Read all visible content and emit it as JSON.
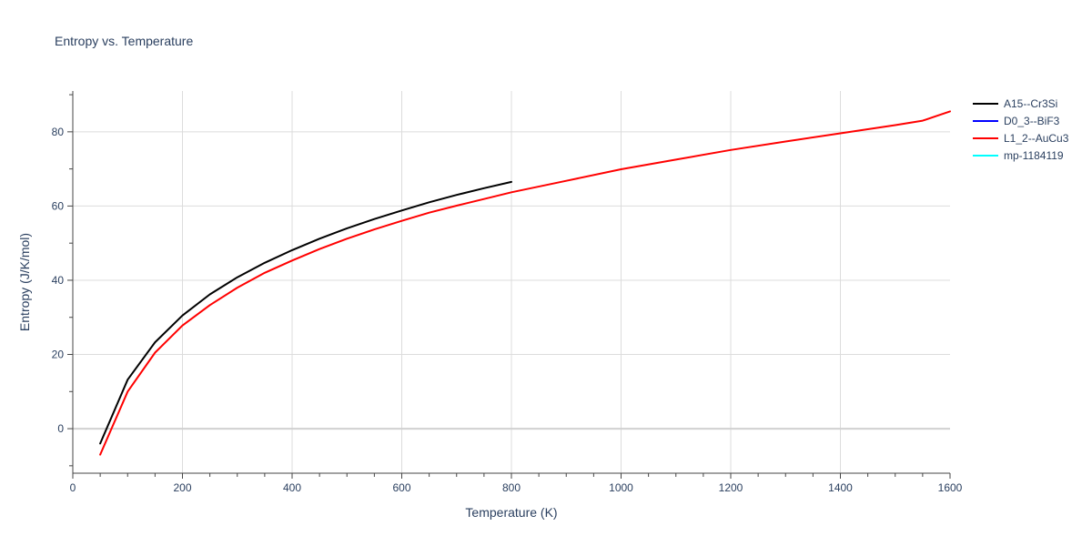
{
  "chart_data": {
    "type": "line",
    "title": "Entropy vs. Temperature",
    "xlabel": "Temperature (K)",
    "ylabel": "Entropy (J/K/mol)",
    "xlim": [
      0,
      1600
    ],
    "ylim": [
      -12,
      91
    ],
    "xticks": [
      0,
      200,
      400,
      600,
      800,
      1000,
      1200,
      1400,
      1600
    ],
    "yticks": [
      0,
      20,
      40,
      60,
      80
    ],
    "grid": true,
    "legend_position": "top-right",
    "series": [
      {
        "name": "A15--Cr3Si",
        "color": "#000000",
        "x": [
          50,
          100,
          150,
          200,
          250,
          300,
          350,
          400,
          450,
          500,
          550,
          600,
          650,
          700,
          750,
          800
        ],
        "y": [
          -4,
          13.2,
          23.3,
          30.5,
          36.2,
          40.8,
          44.7,
          48.1,
          51.2,
          54.0,
          56.5,
          58.8,
          61.0,
          63.0,
          64.8,
          66.5
        ]
      },
      {
        "name": "D0_3--BiF3",
        "color": "#0000ff",
        "x": [],
        "y": []
      },
      {
        "name": "L1_2--AuCu3",
        "color": "#ff0000",
        "x": [
          50,
          100,
          150,
          200,
          250,
          300,
          350,
          400,
          450,
          500,
          550,
          600,
          650,
          700,
          750,
          800,
          900,
          1000,
          1100,
          1200,
          1300,
          1400,
          1500,
          1550,
          1600
        ],
        "y": [
          -7,
          10,
          20.5,
          27.8,
          33.3,
          38.0,
          42.0,
          45.3,
          48.4,
          51.2,
          53.7,
          56.0,
          58.2,
          60.1,
          61.9,
          63.7,
          66.8,
          69.9,
          72.5,
          75.1,
          77.4,
          79.6,
          81.8,
          83.0,
          85.5
        ]
      },
      {
        "name": "mp-1184119",
        "color": "#00ffff",
        "x": [],
        "y": []
      }
    ]
  }
}
